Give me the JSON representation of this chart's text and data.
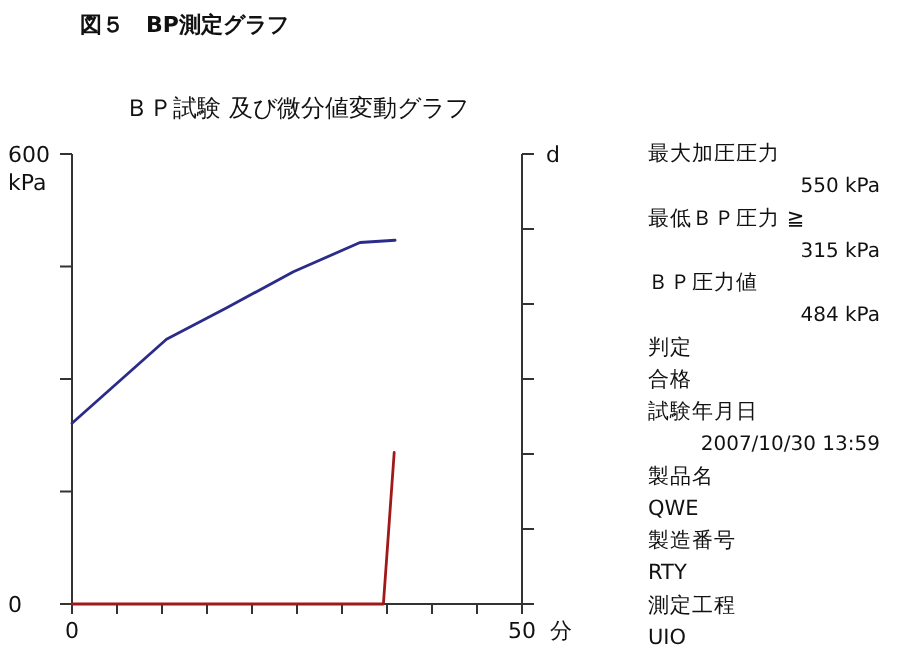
{
  "chart_data": {
    "type": "line",
    "title": "ＢＰ試験 及び微分値変動グラフ",
    "xlabel": "分",
    "ylabel": "kPa",
    "y2label": "d",
    "annotations": [
      "図５　BP測定グラフ",
      "最大加圧圧力",
      "550 kPa",
      "最低ＢＰ圧力 ≧",
      "315 kPa",
      "ＢＰ圧力値",
      "484 kPa",
      "判定",
      "合格",
      "試験年月日",
      "2007/10/30 13:59",
      "製品名",
      "QWE",
      "製造番号",
      "RTY",
      "測定工程",
      "UIO"
    ],
    "series": [
      {
        "color": "#2b2b8a",
        "x": [
          0,
          10.5,
          17.2,
          24.6,
          32.0,
          35.9
        ],
        "values": [
          241,
          353,
          395,
          443,
          482,
          485
        ]
      },
      {
        "color": "#a01818",
        "x": [
          0,
          34.6,
          35.8
        ],
        "values": [
          0,
          0,
          202
        ]
      }
    ],
    "xlim": [
      0,
      50
    ],
    "xticks": [
      0,
      {
        "value": 5,
        "label": null
      },
      {
        "value": 10,
        "label": null
      },
      {
        "value": 15,
        "label": null
      },
      {
        "value": 20,
        "label": null
      },
      {
        "value": 25,
        "label": null
      },
      {
        "value": 30,
        "label": null
      },
      {
        "value": 35,
        "label": null
      },
      {
        "value": 40,
        "label": null
      },
      {
        "value": 45,
        "label": null
      },
      50
    ],
    "ylim": [
      0,
      600
    ],
    "yticks": [
      0,
      {
        "value": 150,
        "label": null
      },
      {
        "value": 300,
        "label": null
      },
      {
        "value": 450,
        "label": null
      },
      600
    ],
    "grid": false,
    "marker": "none",
    "line_style": "solid"
  }
}
